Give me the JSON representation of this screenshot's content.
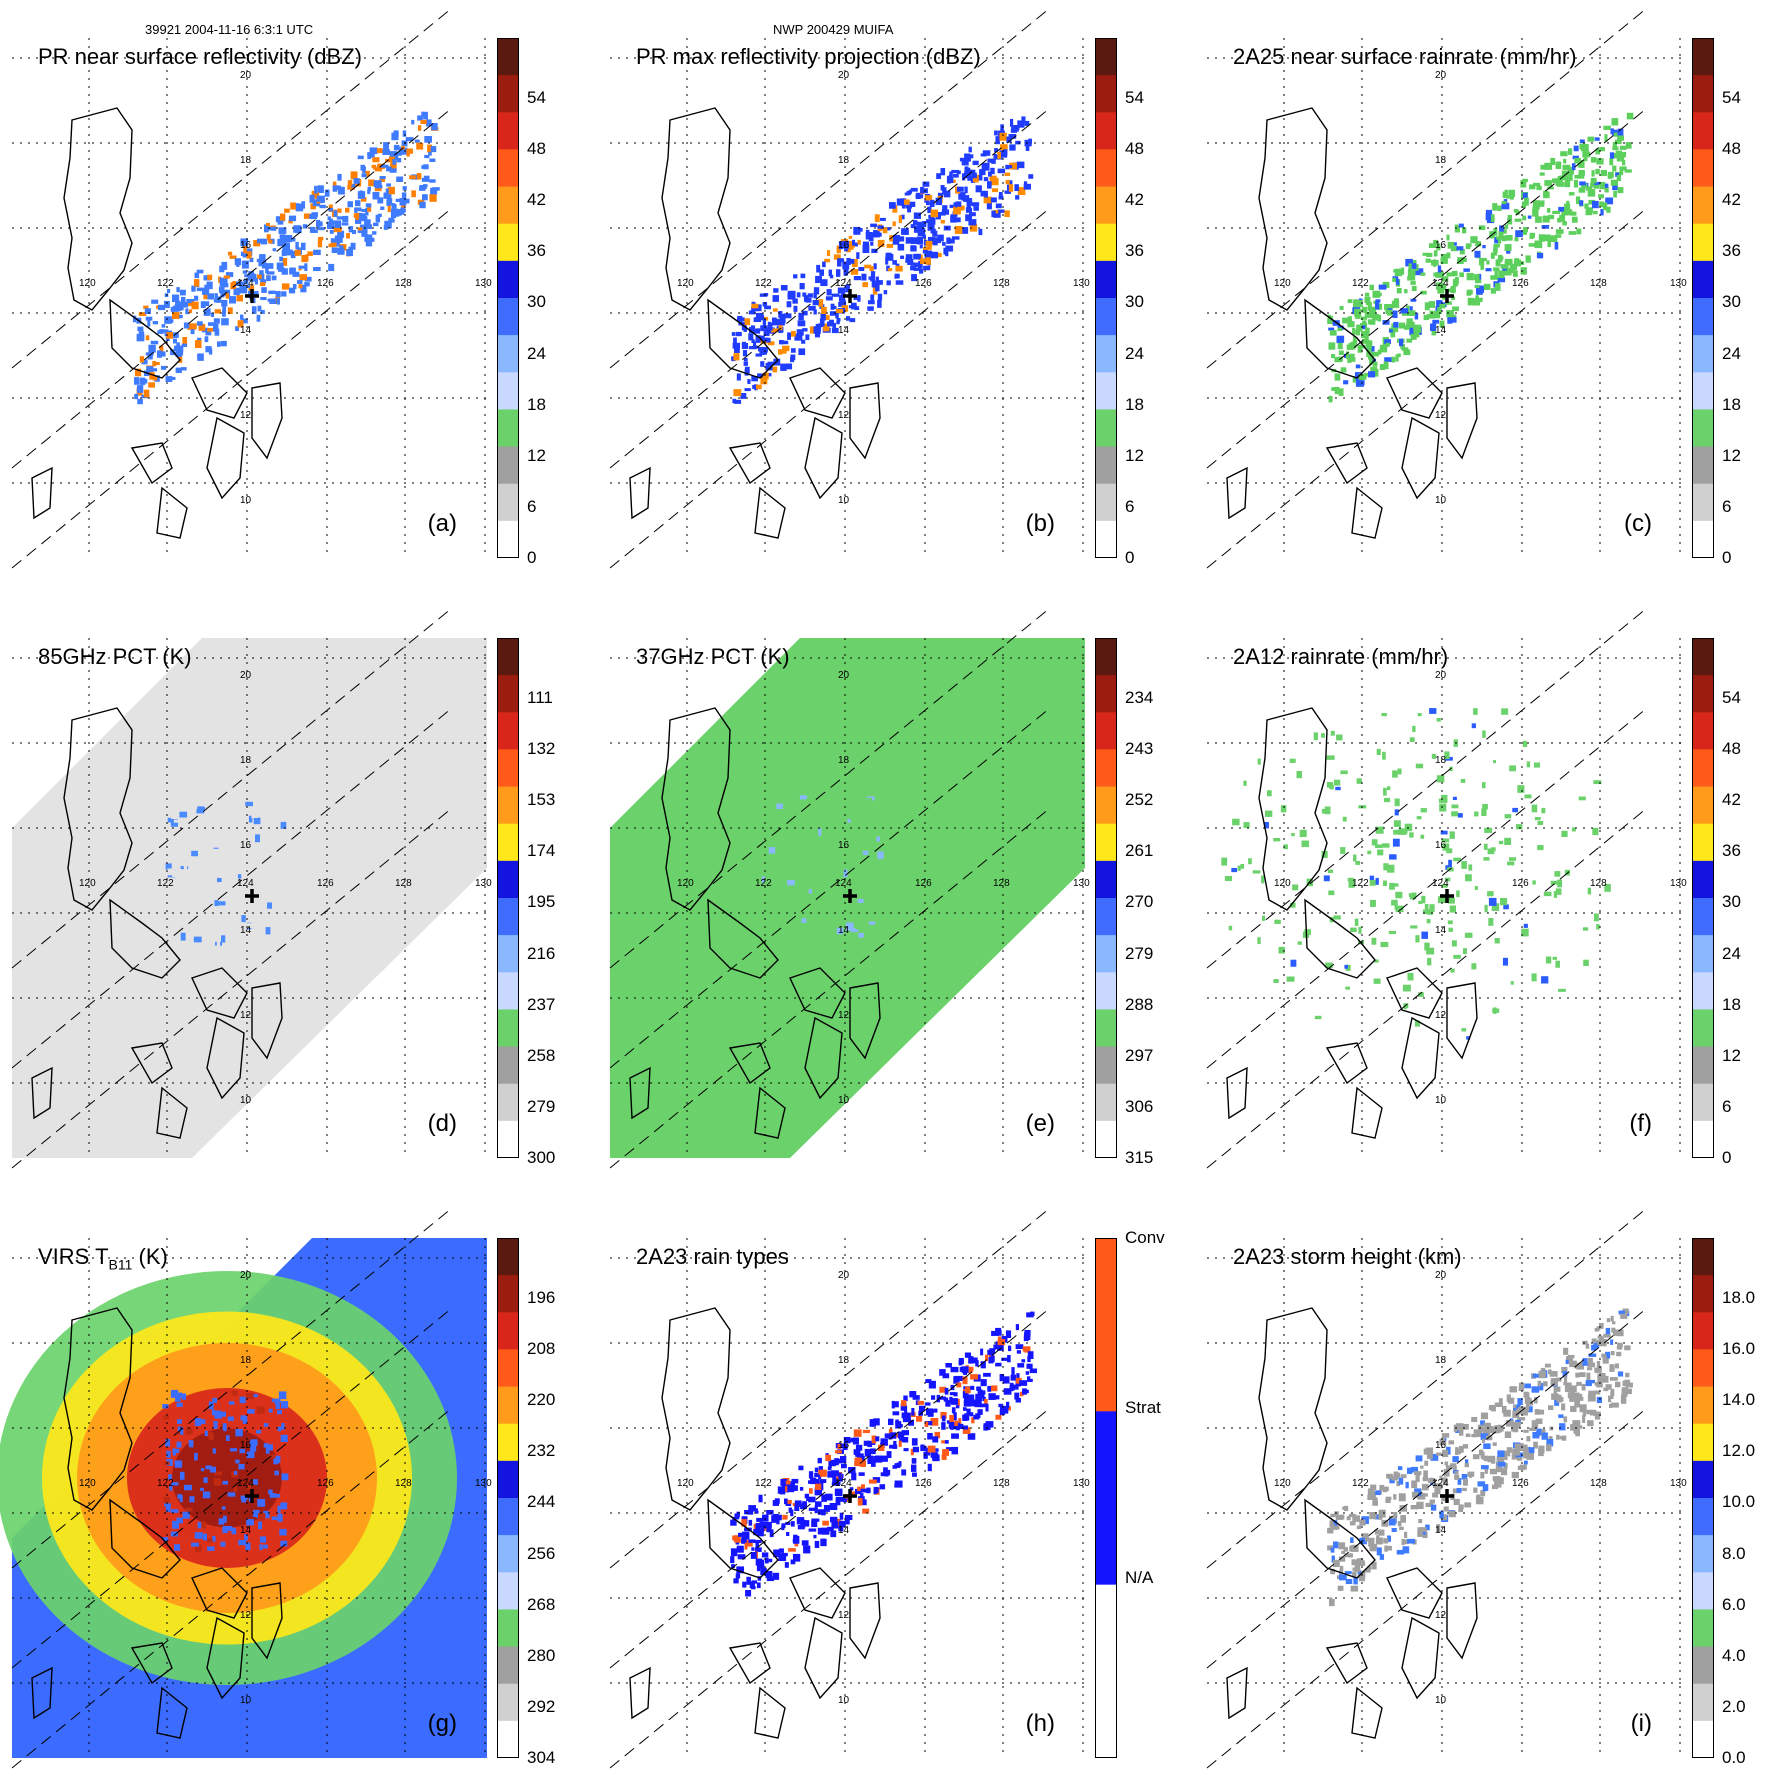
{
  "header": {
    "left_text": "39921 2004-11-16 6:3:1 UTC",
    "center_text": "NWP 200429 MUIFA"
  },
  "grid": {
    "lon_labels": [
      "120",
      "122",
      "124",
      "126",
      "128",
      "130"
    ],
    "lat_labels": [
      "20",
      "18",
      "16",
      "14",
      "12",
      "10"
    ]
  },
  "panels": [
    {
      "id": "a",
      "letter": "(a)",
      "title": "PR near surface reflectivity (dBZ)",
      "colorbar": {
        "labels": [
          "54",
          "48",
          "42",
          "36",
          "30",
          "24",
          "18",
          "12",
          "6",
          "0"
        ]
      },
      "coverage": "pr_swath",
      "colors": {
        "dominant": "#3f7bff",
        "accent": "#ff7f00"
      }
    },
    {
      "id": "b",
      "letter": "(b)",
      "title": "PR max reflectivity projection (dBZ)",
      "colorbar": {
        "labels": [
          "54",
          "48",
          "42",
          "36",
          "30",
          "24",
          "18",
          "12",
          "6",
          "0"
        ]
      },
      "coverage": "pr_swath",
      "colors": {
        "dominant": "#1f3cff",
        "accent": "#ff8c00"
      }
    },
    {
      "id": "c",
      "letter": "(c)",
      "title": "2A25 near surface rainrate (mm/hr)",
      "colorbar": {
        "labels": [
          "54",
          "48",
          "42",
          "36",
          "30",
          "24",
          "18",
          "12",
          "6",
          "0"
        ]
      },
      "coverage": "pr_swath",
      "colors": {
        "dominant": "#5ccf5c",
        "accent": "#2a5bff"
      }
    },
    {
      "id": "d",
      "letter": "(d)",
      "title": "85GHz PCT (K)",
      "colorbar": {
        "labels": [
          "111",
          "132",
          "153",
          "174",
          "195",
          "216",
          "237",
          "258",
          "279",
          "300"
        ]
      },
      "coverage": "tmi_swath",
      "colors": {
        "dominant": "#e3e3e3",
        "accent": "#4a8bff"
      }
    },
    {
      "id": "e",
      "letter": "(e)",
      "title": "37GHz PCT (K)",
      "colorbar": {
        "labels": [
          "234",
          "243",
          "252",
          "261",
          "270",
          "279",
          "288",
          "297",
          "306",
          "315"
        ]
      },
      "coverage": "tmi_swath",
      "colors": {
        "dominant": "#6bd26b",
        "accent": "#8ab8ff"
      }
    },
    {
      "id": "f",
      "letter": "(f)",
      "title": "2A12 rainrate (mm/hr)",
      "colorbar": {
        "labels": [
          "54",
          "48",
          "42",
          "36",
          "30",
          "24",
          "18",
          "12",
          "6",
          "0"
        ]
      },
      "coverage": "tmi_bands",
      "colors": {
        "dominant": "#6bd26b",
        "accent": "#2a5bff"
      }
    },
    {
      "id": "g",
      "letter": "(g)",
      "title": "VIRS T",
      "title_sub": "B11",
      "title_suffix": " (K)",
      "colorbar": {
        "labels": [
          "196",
          "208",
          "220",
          "232",
          "244",
          "256",
          "268",
          "280",
          "292",
          "304"
        ]
      },
      "coverage": "virs_swath",
      "colors": {
        "dominant": "#3b6cff",
        "accent": "#c02a10"
      }
    },
    {
      "id": "h",
      "letter": "(h)",
      "title": "2A23 rain types",
      "colorbar": {
        "labels": [
          "Conv",
          "Strat",
          "N/A"
        ]
      },
      "coverage": "pr_swath",
      "colors": {
        "dominant": "#1414ff",
        "accent": "#ff5a1a"
      }
    },
    {
      "id": "i",
      "letter": "(i)",
      "title": "2A23 storm height (km)",
      "colorbar": {
        "labels": [
          "18.0",
          "16.0",
          "14.0",
          "12.0",
          "10.0",
          "8.0",
          "6.0",
          "4.0",
          "2.0",
          "0.0"
        ]
      },
      "coverage": "pr_swath",
      "colors": {
        "dominant": "#a0a0a0",
        "accent": "#3f7bff"
      }
    }
  ],
  "rainbow_colors": [
    "#5a1a10",
    "#9c1c10",
    "#d8261a",
    "#ff5a1a",
    "#ff9a1a",
    "#ffe81a",
    "#1414e0",
    "#3f6bff",
    "#8ab8ff",
    "#c8d8ff",
    "#6bd26b",
    "#a0a0a0",
    "#d0d0d0",
    "#ffffff"
  ],
  "raintype_colors": [
    "#ff5a1a",
    "#1414ff",
    "#ffffff"
  ]
}
